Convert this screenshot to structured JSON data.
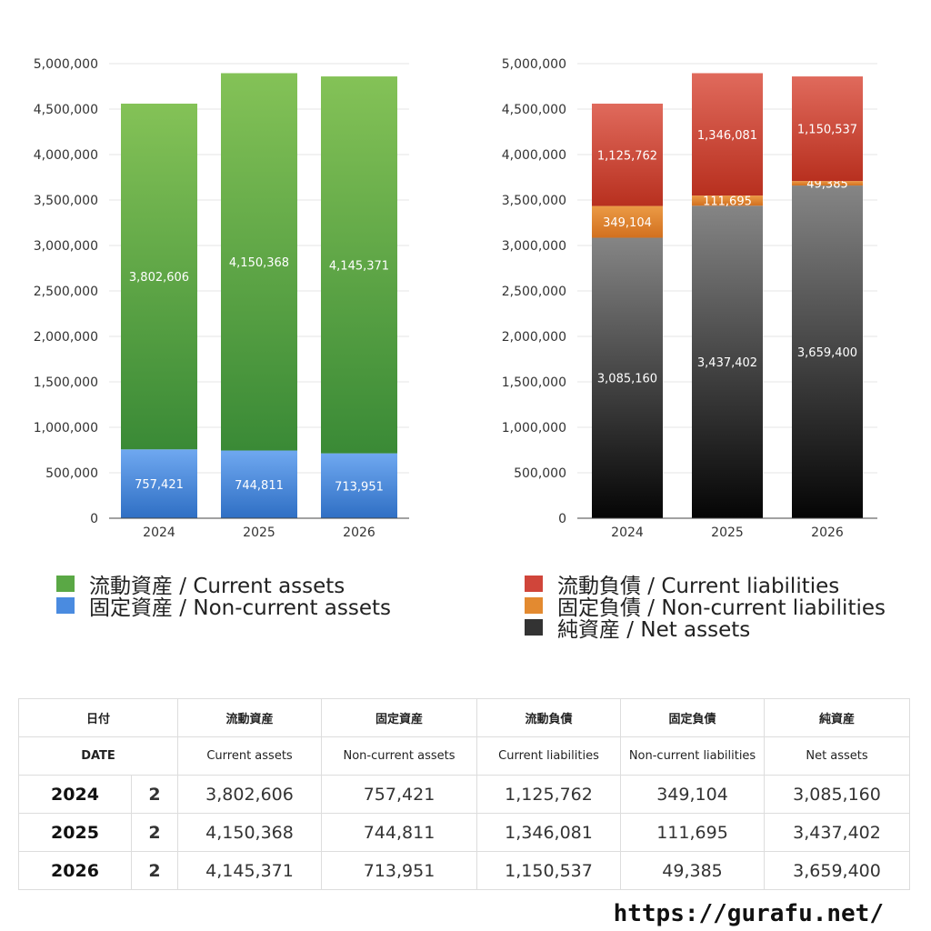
{
  "chart_data": [
    {
      "type": "bar",
      "stacked": true,
      "categories": [
        "2024",
        "2025",
        "2026"
      ],
      "ylim": [
        0,
        5000000
      ],
      "yticks": [
        "0",
        "500,000",
        "1,000,000",
        "1,500,000",
        "2,000,000",
        "2,500,000",
        "3,000,000",
        "3,500,000",
        "4,000,000",
        "4,500,000",
        "5,000,000"
      ],
      "grid": true,
      "legend_placement": "bottom",
      "series": [
        {
          "name": "固定資産 / Non-current assets",
          "values": [
            757421,
            744811,
            713951
          ],
          "labels": [
            "757,421",
            "744,811",
            "713,951"
          ],
          "color_top": "#6fa8f0",
          "color_bottom": "#2f6fc4"
        },
        {
          "name": "流動資産 / Current assets",
          "values": [
            3802606,
            4150368,
            4145371
          ],
          "labels": [
            "3,802,606",
            "4,150,368",
            "4,145,371"
          ],
          "color_top": "#84c257",
          "color_bottom": "#3a8a36"
        }
      ]
    },
    {
      "type": "bar",
      "stacked": true,
      "categories": [
        "2024",
        "2025",
        "2026"
      ],
      "ylim": [
        0,
        5000000
      ],
      "yticks": [
        "0",
        "500,000",
        "1,000,000",
        "1,500,000",
        "2,000,000",
        "2,500,000",
        "3,000,000",
        "3,500,000",
        "4,000,000",
        "4,500,000",
        "5,000,000"
      ],
      "grid": true,
      "legend_placement": "bottom",
      "series": [
        {
          "name": "純資産 / Net assets",
          "values": [
            3085160,
            3437402,
            3659400
          ],
          "labels": [
            "3,085,160",
            "3,437,402",
            "3,659,400"
          ],
          "color_top": "#858585",
          "color_bottom": "#050505"
        },
        {
          "name": "固定負債 / Non-current liabilities",
          "values": [
            349104,
            111695,
            49385
          ],
          "labels": [
            "349,104",
            "111,695",
            "49,385"
          ],
          "color_top": "#eb9a45",
          "color_bottom": "#d2701f"
        },
        {
          "name": "流動負債 / Current liabilities",
          "values": [
            1125762,
            1346081,
            1150537
          ],
          "labels": [
            "1,125,762",
            "1,346,081",
            "1,150,537"
          ],
          "color_top": "#e06a5c",
          "color_bottom": "#b8301f"
        }
      ]
    }
  ],
  "legend_left": [
    {
      "label": "流動資産 / Current assets",
      "color": "#5aa845"
    },
    {
      "label": "固定資産 / Non-current assets",
      "color": "#4a8be0"
    }
  ],
  "legend_right": [
    {
      "label": "流動負債 / Current liabilities",
      "color": "#d0453a"
    },
    {
      "label": "固定負債 / Non-current liabilities",
      "color": "#e38a30"
    },
    {
      "label": "純資産 / Net assets",
      "color": "#333333"
    }
  ],
  "table": {
    "headers_ja": [
      "日付",
      "",
      "流動資産",
      "固定資産",
      "流動負債",
      "固定負債",
      "純資産"
    ],
    "headers_en": [
      "DATE",
      "",
      "Current assets",
      "Non-current assets",
      "Current liabilities",
      "Non-current liabilities",
      "Net assets"
    ],
    "rows": [
      {
        "date": "2024",
        "num": "2",
        "current_assets": "3,802,606",
        "noncurrent_assets": "757,421",
        "current_liabilities": "1,125,762",
        "noncurrent_liabilities": "349,104",
        "net_assets": "3,085,160"
      },
      {
        "date": "2025",
        "num": "2",
        "current_assets": "4,150,368",
        "noncurrent_assets": "744,811",
        "current_liabilities": "1,346,081",
        "noncurrent_liabilities": "111,695",
        "net_assets": "3,437,402"
      },
      {
        "date": "2026",
        "num": "2",
        "current_assets": "4,145,371",
        "noncurrent_assets": "713,951",
        "current_liabilities": "1,150,537",
        "noncurrent_liabilities": "49,385",
        "net_assets": "3,659,400"
      }
    ]
  },
  "footer": {
    "url": "https://gurafu.net/"
  }
}
